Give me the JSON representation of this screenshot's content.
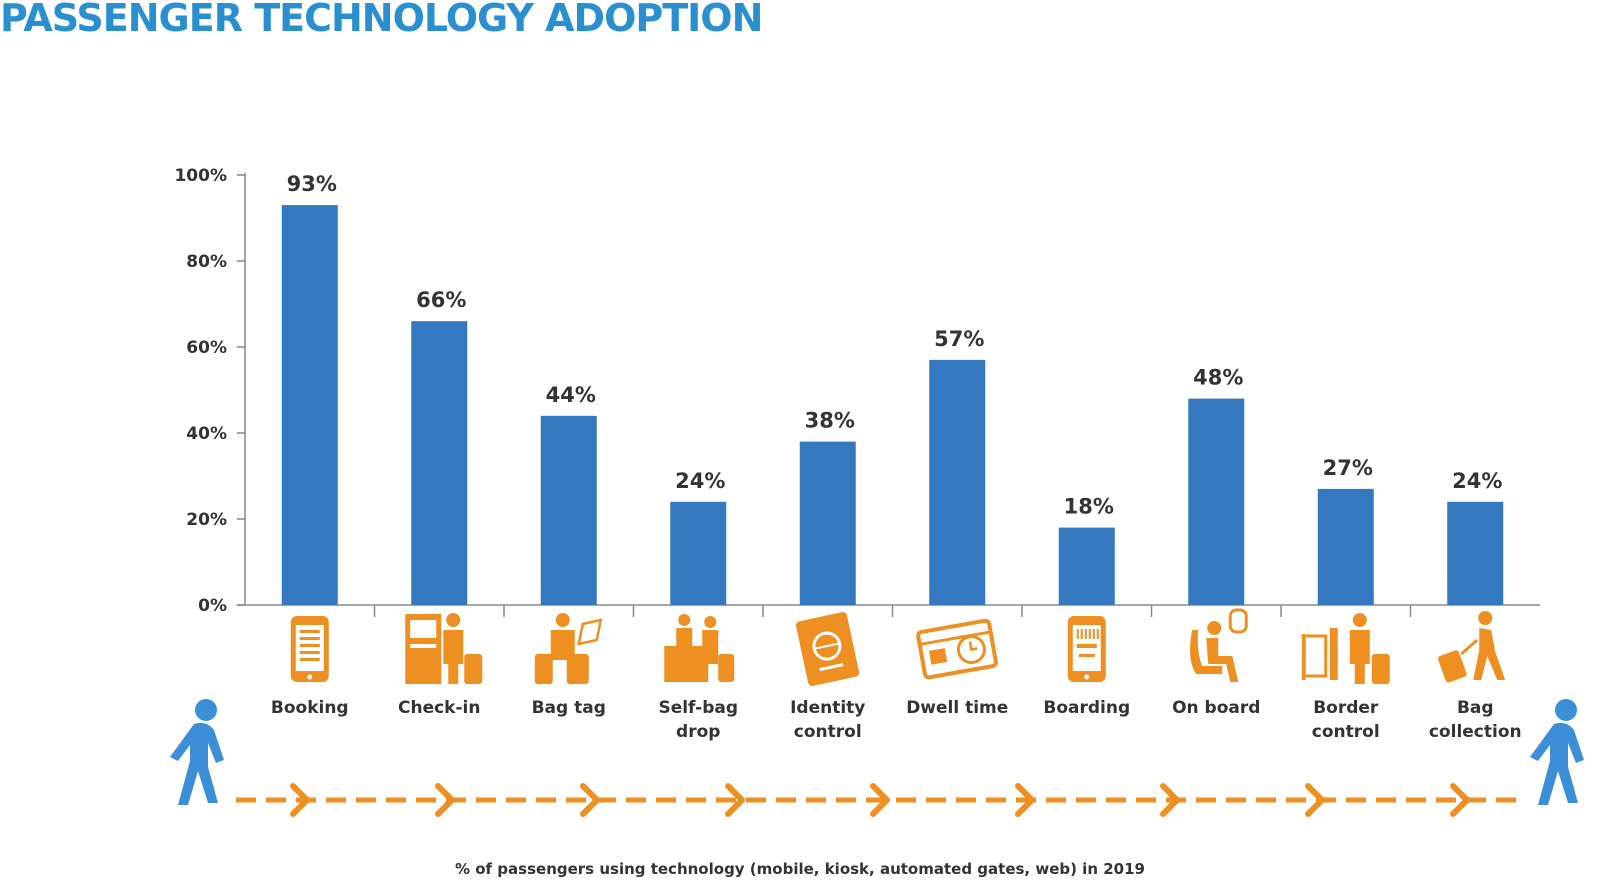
{
  "header": {
    "title": "PASSENGER TECHNOLOGY ADOPTION"
  },
  "footnote": "% of passengers using technology (mobile, kiosk, automated gates, web) in 2019",
  "colors": {
    "title": "#2a8fd0",
    "bar": "#3478c0",
    "icon": "#ee8f22",
    "walker": "#3c8fd6",
    "text": "#333333"
  },
  "chart_data": {
    "type": "bar",
    "title": "",
    "xlabel": "",
    "ylabel": "",
    "ylim": [
      0,
      100
    ],
    "y_ticks": [
      "0%",
      "20%",
      "40%",
      "60%",
      "80%",
      "100%"
    ],
    "y_tick_values": [
      0,
      20,
      40,
      60,
      80,
      100
    ],
    "grid": false,
    "categories": [
      {
        "label": [
          "Booking"
        ],
        "icon": "smartphone-icon"
      },
      {
        "label": [
          "Check-in"
        ],
        "icon": "check-in-kiosk-icon"
      },
      {
        "label": [
          "Bag tag"
        ],
        "icon": "bag-tag-icon"
      },
      {
        "label": [
          "Self-bag",
          "drop"
        ],
        "icon": "bag-drop-icon"
      },
      {
        "label": [
          "Identity",
          "control"
        ],
        "icon": "passport-icon"
      },
      {
        "label": [
          "Dwell time"
        ],
        "icon": "clock-ticket-icon"
      },
      {
        "label": [
          "Boarding"
        ],
        "icon": "boarding-pass-phone-icon"
      },
      {
        "label": [
          "On board"
        ],
        "icon": "seated-passenger-icon"
      },
      {
        "label": [
          "Border",
          "control"
        ],
        "icon": "automated-gate-icon"
      },
      {
        "label": [
          "Bag",
          "collection"
        ],
        "icon": "luggage-walker-icon"
      }
    ],
    "values": [
      93,
      66,
      44,
      24,
      38,
      57,
      18,
      48,
      27,
      24
    ],
    "value_labels": [
      "93%",
      "66%",
      "44%",
      "24%",
      "38%",
      "57%",
      "18%",
      "48%",
      "27%",
      "24%"
    ]
  },
  "journey": {
    "start_icon": "walking-person-icon",
    "end_icon": "walking-person-icon",
    "arrow_icon": "dashed-arrow-icon"
  }
}
